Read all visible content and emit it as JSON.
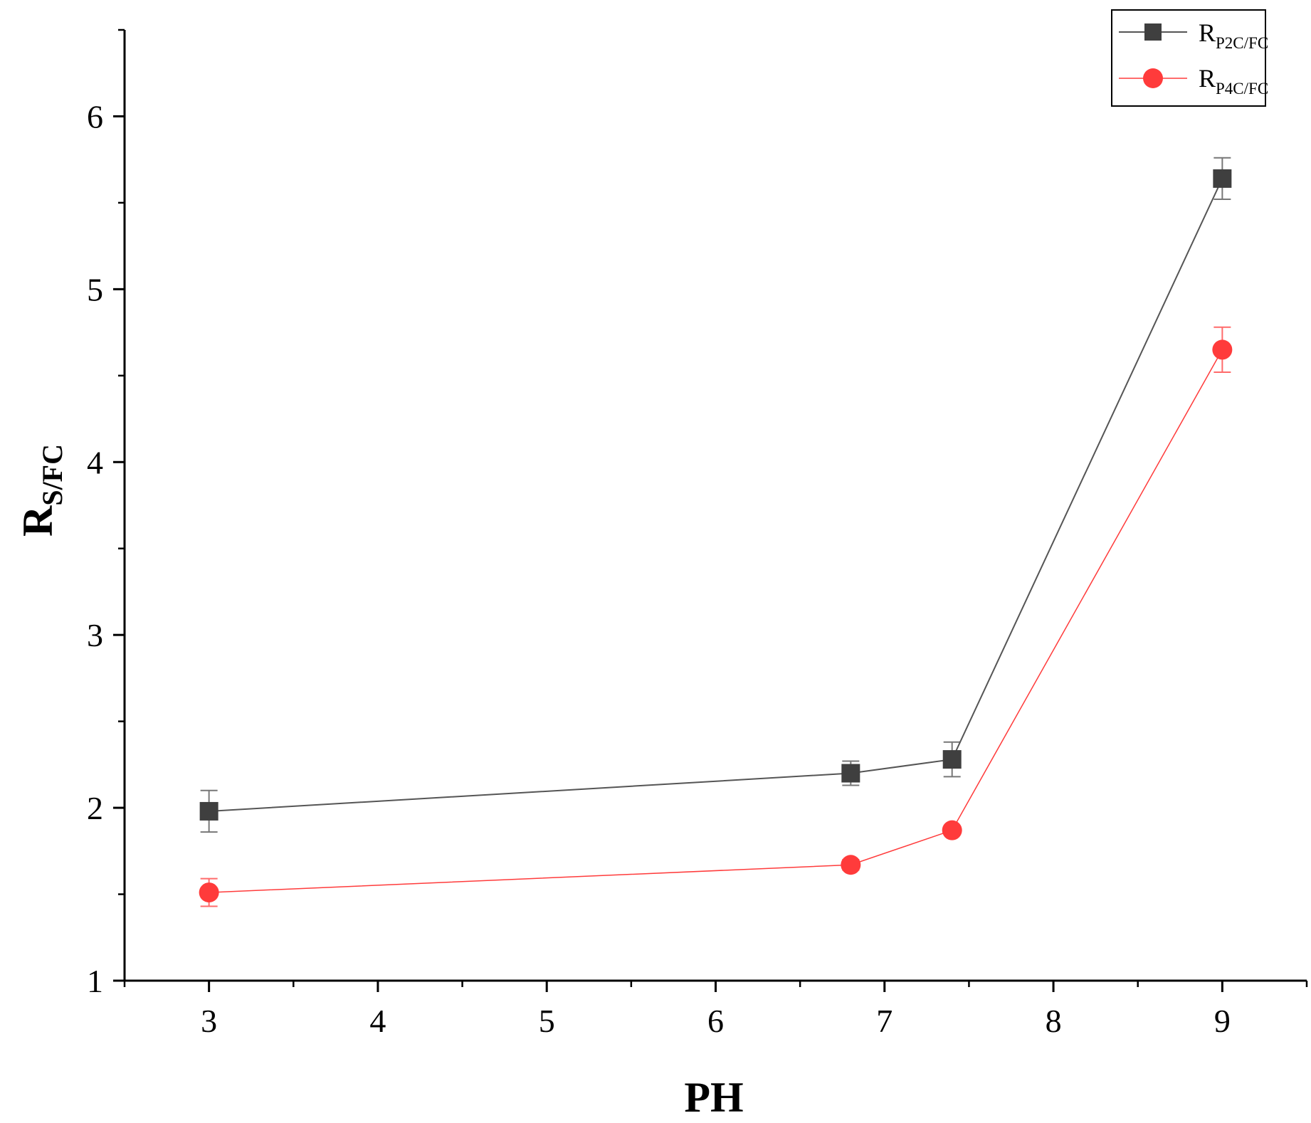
{
  "chart_data": {
    "type": "line",
    "xlabel": "PH",
    "ylabel": {
      "base": "R",
      "sub": "S/FC"
    },
    "xlim": [
      2.5,
      9.5
    ],
    "ylim": [
      1,
      6.5
    ],
    "xticks": [
      3,
      4,
      5,
      6,
      7,
      8,
      9
    ],
    "yticks": [
      1,
      2,
      3,
      4,
      5,
      6
    ],
    "grid": false,
    "legend_position": "top-right",
    "series": [
      {
        "name": "R_P2C/FC",
        "name_base": "R",
        "name_sub": "P2C/FC",
        "color": "#3f3f3f",
        "line_color": "#555555",
        "marker": "square",
        "x": [
          3,
          6.8,
          7.4,
          9
        ],
        "y": [
          1.98,
          2.2,
          2.28,
          5.64
        ],
        "err": [
          0.12,
          0.07,
          0.1,
          0.12
        ]
      },
      {
        "name": "R_P4C/FC",
        "name_base": "R",
        "name_sub": "P4C/FC",
        "color": "#ff3b3b",
        "line_color": "#ff3b3b",
        "marker": "circle",
        "x": [
          3,
          6.8,
          7.4,
          9
        ],
        "y": [
          1.51,
          1.67,
          1.87,
          4.65
        ],
        "err": [
          0.08,
          0.03,
          0.02,
          0.13
        ]
      }
    ]
  }
}
